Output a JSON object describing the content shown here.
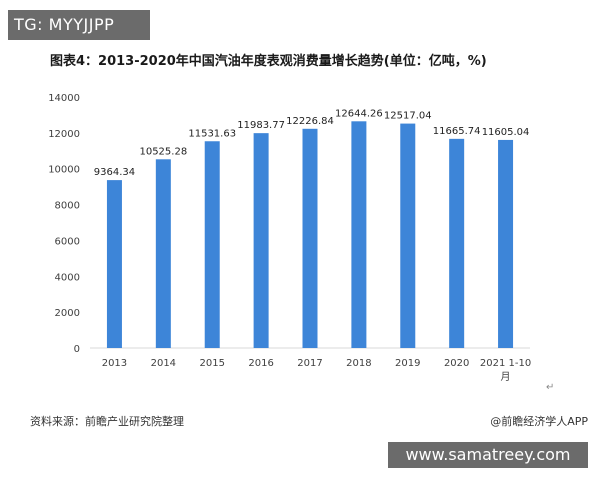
{
  "badge": {
    "text": "TG: MYYJJPP"
  },
  "watermark": {
    "text": "www.samatreey.com"
  },
  "footer": {
    "source": "资料来源：前瞻产业研究院整理",
    "credit": "@前瞻经济学人APP",
    "return_mark": "↵"
  },
  "colors": {
    "bar": "#3d85d8",
    "axis": "#d9d9d9",
    "tick_text": "#404040",
    "label_text": "#1f1f1f"
  },
  "chart_data": {
    "type": "bar",
    "title": "图表4：2013-2020年中国汽油年度表观消费量增长趋势(单位：亿吨，%)",
    "categories": [
      "2013",
      "2014",
      "2015",
      "2016",
      "2017",
      "2018",
      "2019",
      "2020",
      "2021 1-10月"
    ],
    "values": [
      9364.34,
      10525.28,
      11531.63,
      11983.77,
      12226.84,
      12644.26,
      12517.04,
      11665.74,
      11605.04
    ],
    "value_labels": [
      "9364.34",
      "10525.28",
      "11531.63",
      "11983.77",
      "12226.84",
      "12644.26",
      "12517.04",
      "11665.74",
      "11605.04"
    ],
    "ylim": [
      0,
      14000
    ],
    "yticks": [
      "0",
      "2000",
      "4000",
      "6000",
      "8000",
      "10000",
      "12000",
      "14000"
    ],
    "xlabel": "",
    "ylabel": "",
    "grid": false,
    "legend": "none"
  }
}
